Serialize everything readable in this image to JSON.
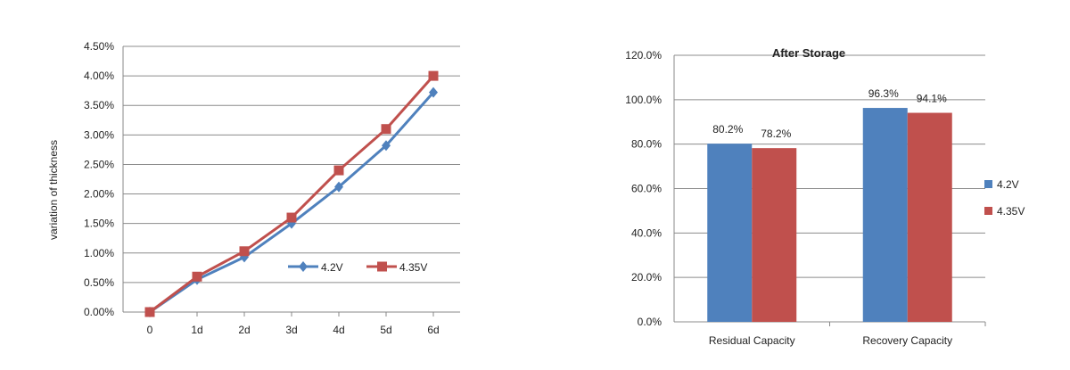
{
  "chart_data": [
    {
      "type": "line",
      "ylabel": "variation of thickness",
      "xlabel": "",
      "categories": [
        "0",
        "1d",
        "2d",
        "3d",
        "4d",
        "5d",
        "6d"
      ],
      "y_ticks": [
        "0.00%",
        "0.50%",
        "1.00%",
        "1.50%",
        "2.00%",
        "2.50%",
        "3.00%",
        "3.50%",
        "4.00%",
        "4.50%"
      ],
      "ylim": [
        0,
        4.5
      ],
      "grid": true,
      "legend_position": "bottom-right inside plot",
      "series": [
        {
          "name": "4.2V",
          "color": "#4f81bd",
          "marker": "diamond",
          "values": [
            0,
            0.55,
            0.93,
            1.5,
            2.12,
            2.82,
            3.72
          ]
        },
        {
          "name": "4.35V",
          "color": "#c0504d",
          "marker": "square",
          "values": [
            0,
            0.6,
            1.03,
            1.6,
            2.4,
            3.1,
            4.0
          ]
        }
      ]
    },
    {
      "type": "bar",
      "title": "After Storage",
      "categories": [
        "Residual Capacity",
        "Recovery Capacity"
      ],
      "y_ticks": [
        "0.0%",
        "20.0%",
        "40.0%",
        "60.0%",
        "80.0%",
        "100.0%",
        "120.0%"
      ],
      "ylim": [
        0,
        120
      ],
      "grid": true,
      "legend_position": "right",
      "series": [
        {
          "name": "4.2V",
          "color": "#4f81bd",
          "values": [
            80.2,
            96.3
          ],
          "labels": [
            "80.2%",
            "96.3%"
          ]
        },
        {
          "name": "4.35V",
          "color": "#c0504d",
          "values": [
            78.2,
            94.1
          ],
          "labels": [
            "78.2%",
            "94.1%"
          ]
        }
      ]
    }
  ]
}
